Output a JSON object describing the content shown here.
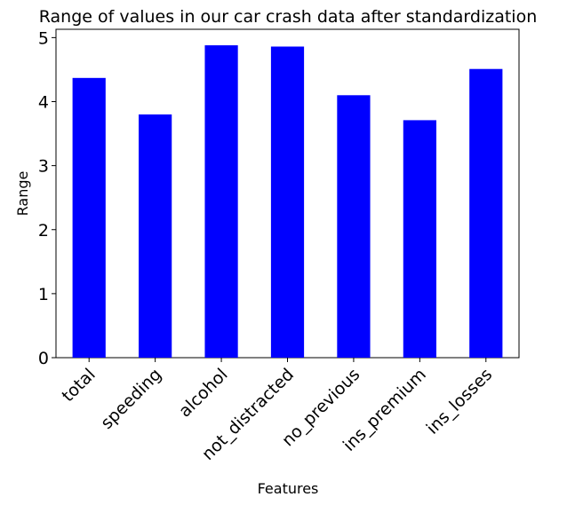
{
  "chart_data": {
    "type": "bar",
    "title": "Range of values in our car crash data after standardization",
    "xlabel": "Features",
    "ylabel": "Range",
    "categories": [
      "total",
      "speeding",
      "alcohol",
      "not_distracted",
      "no_previous",
      "ins_premium",
      "ins_losses"
    ],
    "values": [
      4.37,
      3.8,
      4.88,
      4.86,
      4.1,
      3.71,
      4.51
    ],
    "ylim": [
      0,
      5.13
    ],
    "yticks": [
      "0",
      "1",
      "2",
      "3",
      "4",
      "5"
    ],
    "grid": false,
    "legend": "none",
    "bar_color": "#0000ff"
  }
}
